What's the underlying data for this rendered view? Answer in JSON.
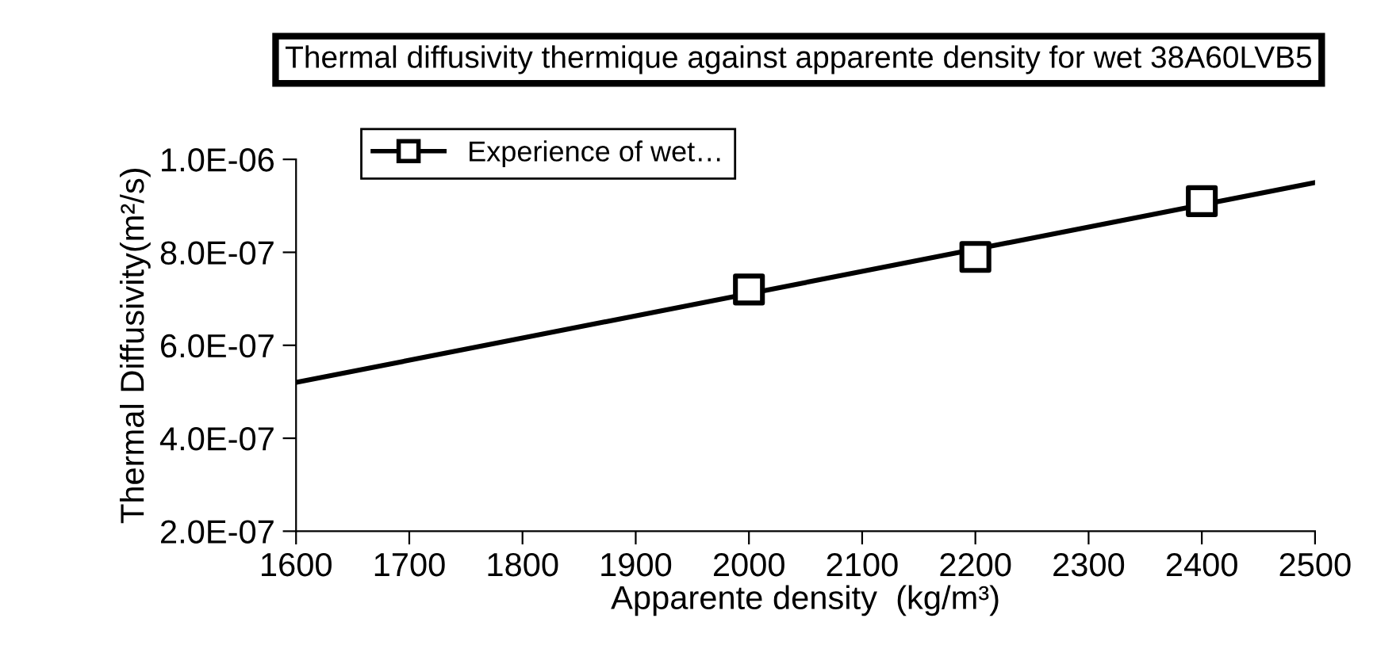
{
  "chart_data": {
    "type": "scatter",
    "title": "Thermal diffusivity thermique against apparente density for wet 38A60LVB5",
    "xlabel": "Apparente density  (kg/m³)",
    "ylabel": "Thermal Diffusivity(m²/s)",
    "series": [
      {
        "name": "Experience of wet…",
        "color": "#000000",
        "x": [
          2000,
          2200,
          2400
        ],
        "values": [
          7.2e-07,
          7.9e-07,
          9.1e-07
        ],
        "marker": "square"
      },
      {
        "type": "line",
        "color": "#000000",
        "x": [
          1600,
          2500
        ],
        "values": [
          5.2e-07,
          9.5e-07
        ],
        "marker": "none",
        "line_style": "solid"
      }
    ],
    "xlim": [
      1600,
      2500
    ],
    "xticks": [
      1600,
      1700,
      1800,
      1900,
      2000,
      2100,
      2200,
      2300,
      2400,
      2500
    ],
    "ylim": [
      2e-07,
      1e-06
    ],
    "yticks": [
      {
        "value": 2e-07,
        "label": "2.0E-07"
      },
      {
        "value": 4e-07,
        "label": "4.0E-07"
      },
      {
        "value": 6e-07,
        "label": "6.0E-07"
      },
      {
        "value": 8e-07,
        "label": "8.0E-07"
      },
      {
        "value": 1e-06,
        "label": "1.0E-06"
      }
    ],
    "grid": false,
    "legend": "top left"
  }
}
